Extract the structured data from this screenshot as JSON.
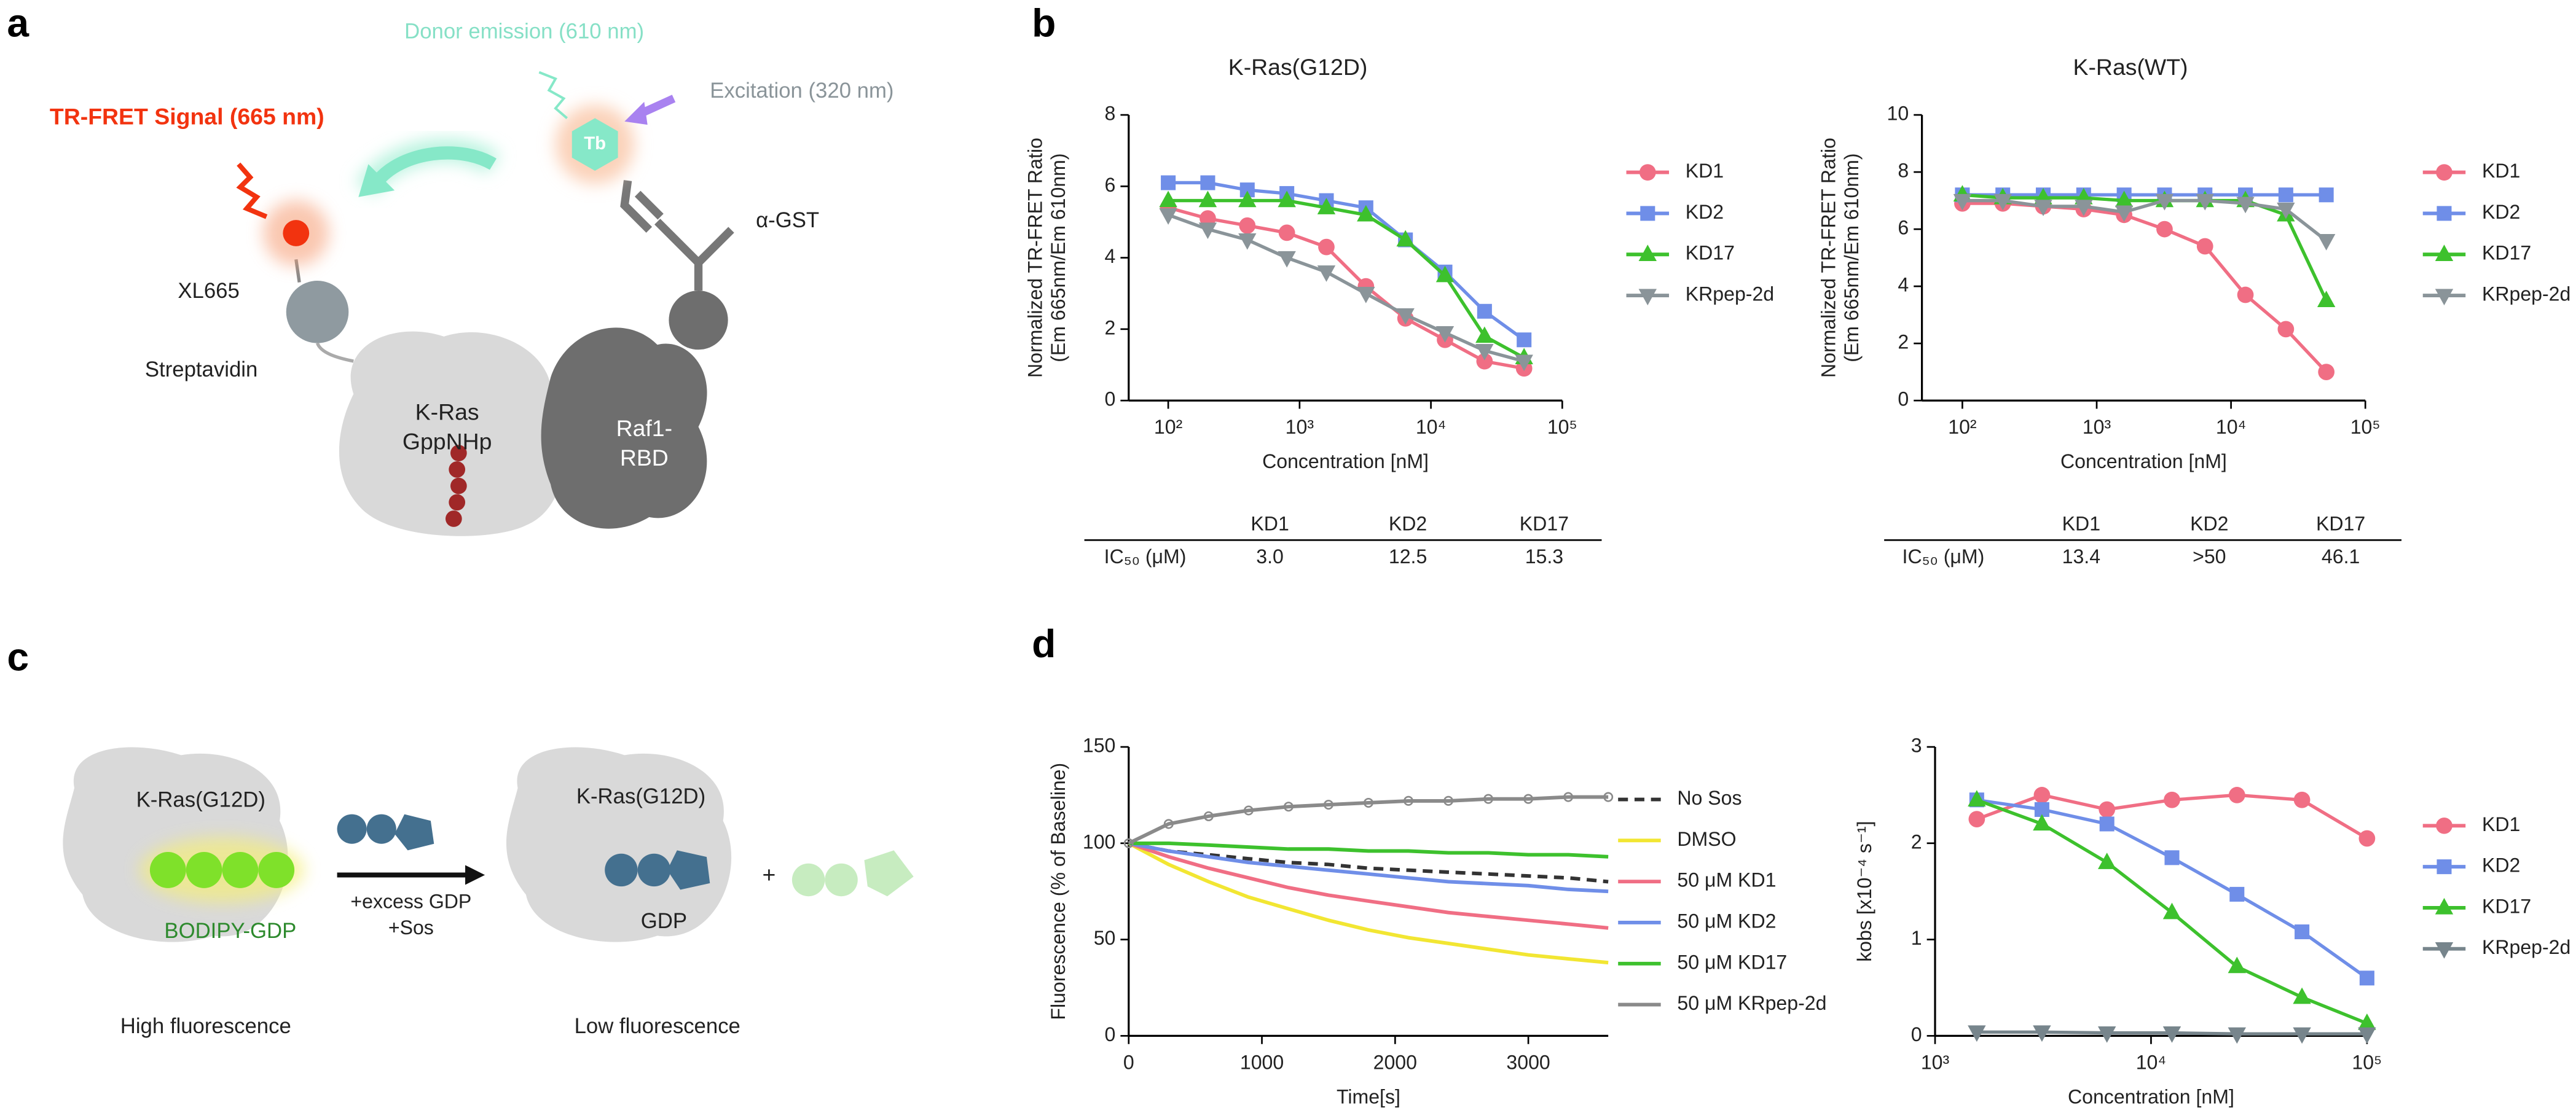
{
  "panels": [
    "a",
    "b",
    "c",
    "d"
  ],
  "diagram_a": {
    "signal": "TR-FRET Signal (665 nm)",
    "donor": "Donor emission (610 nm)",
    "excitation": "Excitation (320 nm)",
    "tb": "Tb",
    "acceptor": "XL665",
    "antibody": "α-GST",
    "streptavidin": "Streptavidin",
    "kras": [
      "K-Ras",
      "GppNHp"
    ],
    "raf": [
      "Raf1-",
      "RBD"
    ]
  },
  "diagram_c": {
    "left_protein": "K-Ras(G12D)",
    "probe": "BODIPY-GDP",
    "conditions": [
      "+excess GDP",
      "+Sos"
    ],
    "right_protein": "K-Ras(G12D)",
    "gdp": "GDP",
    "plus": "+",
    "left_caption": "High fluorescence",
    "right_caption": "Low fluorescence"
  },
  "tables": [
    {
      "headers": [
        "KD1",
        "KD2",
        "KD17"
      ],
      "row_label": "IC₅₀ (μM)",
      "values": [
        "3.0",
        "12.5",
        "15.3"
      ]
    },
    {
      "headers": [
        "KD1",
        "KD2",
        "KD17"
      ],
      "row_label": "IC₅₀ (μM)",
      "values": [
        "13.4",
        ">50",
        "46.1"
      ]
    }
  ],
  "chart_data": [
    {
      "type": "line",
      "title": "K-Ras(G12D)",
      "xlabel": "Concentration [nM]",
      "ylabel": [
        "Normalized TR-FRET Ratio",
        "(Em 665nm/Em 610nm)"
      ],
      "xscale": "log",
      "xlim": [
        50,
        100000
      ],
      "xticks": [
        {
          "value": 100,
          "label": "10²"
        },
        {
          "value": 1000,
          "label": "10³"
        },
        {
          "value": 10000,
          "label": "10⁴"
        },
        {
          "value": 100000,
          "label": "10⁵"
        }
      ],
      "ylim": [
        0,
        8
      ],
      "yticks": [
        0,
        2,
        4,
        6,
        8
      ],
      "x": [
        100,
        200,
        400,
        800,
        1600,
        3200,
        6400,
        12800,
        25600,
        51200
      ],
      "series": [
        {
          "name": "KD1",
          "color": "#f06e84",
          "marker": "circle",
          "values": [
            5.4,
            5.1,
            4.9,
            4.7,
            4.3,
            3.2,
            2.3,
            1.7,
            1.1,
            0.9
          ]
        },
        {
          "name": "KD2",
          "color": "#6f8ee8",
          "marker": "square",
          "values": [
            6.1,
            6.1,
            5.9,
            5.8,
            5.6,
            5.4,
            4.5,
            3.6,
            2.5,
            1.7
          ]
        },
        {
          "name": "KD17",
          "color": "#3dc12d",
          "marker": "triangle",
          "values": [
            5.6,
            5.6,
            5.6,
            5.6,
            5.4,
            5.2,
            4.5,
            3.5,
            1.8,
            1.2
          ]
        },
        {
          "name": "KRpep-2d",
          "color": "#8a9499",
          "marker": "triangle-down",
          "values": [
            5.2,
            4.8,
            4.5,
            4.0,
            3.6,
            3.0,
            2.4,
            1.9,
            1.4,
            1.1
          ]
        }
      ]
    },
    {
      "type": "line",
      "title": "K-Ras(WT)",
      "xlabel": "Concentration [nM]",
      "ylabel": [
        "Normalized TR-FRET Ratio",
        "(Em 665nm/Em 610nm)"
      ],
      "xscale": "log",
      "xlim": [
        50,
        100000
      ],
      "xticks": [
        {
          "value": 100,
          "label": "10²"
        },
        {
          "value": 1000,
          "label": "10³"
        },
        {
          "value": 10000,
          "label": "10⁴"
        },
        {
          "value": 100000,
          "label": "10⁵"
        }
      ],
      "ylim": [
        0,
        10
      ],
      "yticks": [
        0,
        2,
        4,
        6,
        8,
        10
      ],
      "x": [
        100,
        200,
        400,
        800,
        1600,
        3200,
        6400,
        12800,
        25600,
        51200
      ],
      "series": [
        {
          "name": "KD1",
          "color": "#f06e84",
          "marker": "circle",
          "values": [
            6.9,
            6.9,
            6.8,
            6.7,
            6.5,
            6.0,
            5.4,
            3.7,
            2.5,
            1.0
          ]
        },
        {
          "name": "KD2",
          "color": "#6f8ee8",
          "marker": "square",
          "values": [
            7.2,
            7.2,
            7.2,
            7.2,
            7.2,
            7.2,
            7.2,
            7.2,
            7.2,
            7.2
          ]
        },
        {
          "name": "KD17",
          "color": "#3dc12d",
          "marker": "triangle",
          "values": [
            7.2,
            7.1,
            7.1,
            7.1,
            7.0,
            7.0,
            7.0,
            7.0,
            6.5,
            3.5
          ]
        },
        {
          "name": "KRpep-2d",
          "color": "#8a9499",
          "marker": "triangle-down",
          "values": [
            7.0,
            7.0,
            6.8,
            6.8,
            6.6,
            7.0,
            7.0,
            6.9,
            6.7,
            5.6
          ]
        }
      ]
    },
    {
      "type": "line",
      "xlabel": "Time[s]",
      "ylabel": [
        "Fluorescence (% of Baseline)"
      ],
      "xlim": [
        0,
        3600
      ],
      "xticks": [
        0,
        1000,
        2000,
        3000
      ],
      "ylim": [
        0,
        150
      ],
      "yticks": [
        0,
        50,
        100,
        150
      ],
      "x": [
        0,
        300,
        600,
        900,
        1200,
        1500,
        1800,
        2100,
        2400,
        2700,
        3000,
        3300,
        3600
      ],
      "series": [
        {
          "name": "No Sos",
          "color": "#333333",
          "dash": true,
          "values": [
            100,
            96,
            94,
            92,
            90,
            89,
            87,
            86,
            85,
            84,
            83,
            82,
            80
          ]
        },
        {
          "name": "DMSO",
          "color": "#f2e632",
          "values": [
            100,
            89,
            80,
            72,
            66,
            60,
            55,
            51,
            48,
            45,
            42,
            40,
            38
          ]
        },
        {
          "name": "50 μM KD1",
          "color": "#f06e84",
          "values": [
            100,
            93,
            87,
            82,
            77,
            73,
            70,
            67,
            64,
            62,
            60,
            58,
            56
          ]
        },
        {
          "name": "50 μM KD2",
          "color": "#6f8ee8",
          "values": [
            100,
            96,
            93,
            90,
            88,
            86,
            84,
            82,
            80,
            79,
            78,
            76,
            75
          ]
        },
        {
          "name": "50 μM KD17",
          "color": "#3dc12d",
          "values": [
            100,
            100,
            99,
            98,
            97,
            97,
            96,
            96,
            95,
            95,
            94,
            94,
            93
          ]
        },
        {
          "name": "50 μM KRpep-2d",
          "color": "#8a8a8a",
          "marker": "circle-open",
          "values": [
            100,
            110,
            114,
            117,
            119,
            120,
            121,
            122,
            122,
            123,
            123,
            124,
            124
          ]
        }
      ]
    },
    {
      "type": "line",
      "xlabel": "Concentration [nM]",
      "ylabel": [
        "kobs [x10⁻⁴ s⁻¹]"
      ],
      "xscale": "log",
      "xlim": [
        1000,
        100000
      ],
      "xticks": [
        {
          "value": 1000,
          "label": "10³"
        },
        {
          "value": 10000,
          "label": "10⁴"
        },
        {
          "value": 100000,
          "label": "10⁵"
        }
      ],
      "ylim": [
        0,
        3
      ],
      "yticks": [
        0,
        1,
        2,
        3
      ],
      "x": [
        1560,
        3125,
        6250,
        12500,
        25000,
        50000,
        100000
      ],
      "series": [
        {
          "name": "KD1",
          "color": "#f06e84",
          "marker": "circle",
          "values": [
            2.25,
            2.5,
            2.35,
            2.45,
            2.5,
            2.45,
            2.05
          ]
        },
        {
          "name": "KD2",
          "color": "#6f8ee8",
          "marker": "square",
          "values": [
            2.45,
            2.35,
            2.2,
            1.85,
            1.47,
            1.08,
            0.6
          ]
        },
        {
          "name": "KD17",
          "color": "#3dc12d",
          "marker": "triangle",
          "values": [
            2.45,
            2.2,
            1.8,
            1.28,
            0.72,
            0.4,
            0.13
          ]
        },
        {
          "name": "KRpep-2d",
          "color": "#77858c",
          "marker": "triangle-down",
          "values": [
            0.04,
            0.04,
            0.03,
            0.03,
            0.02,
            0.02,
            0.02
          ]
        }
      ]
    }
  ]
}
